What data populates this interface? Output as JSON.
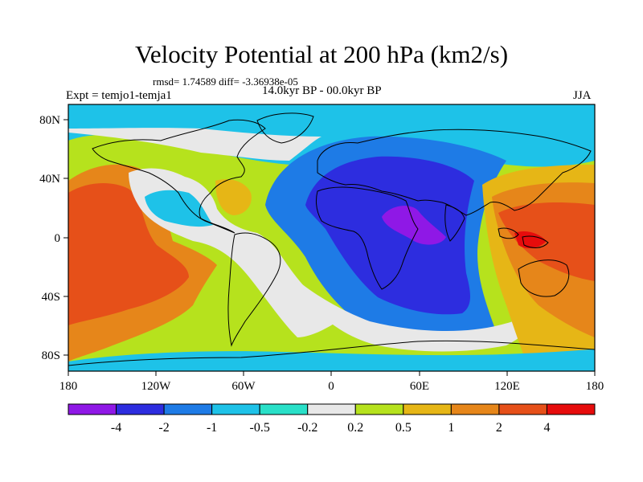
{
  "title": "Velocity Potential at 200 hPa (km2/s)",
  "stats": "rmsd= 1.74589 diff= -3.36938e-05",
  "left_label": "Expt = temjo1-temja1",
  "center_label": "14.0kyr BP - 00.0kyr BP",
  "right_label": "JJA",
  "axes": {
    "x_ticks": [
      "180",
      "120W",
      "60W",
      "0",
      "60E",
      "120E",
      "180"
    ],
    "y_ticks": [
      "80N",
      "40N",
      "0",
      "40S",
      "80S"
    ]
  },
  "colorbar": {
    "labels": [
      "-4",
      "-2",
      "-1",
      "-0.5",
      "-0.2",
      "0.2",
      "0.5",
      "1",
      "2",
      "4"
    ],
    "colors": [
      "#8f18e6",
      "#2d2ddf",
      "#1e7be6",
      "#1ec2e8",
      "#29e0c8",
      "#e8e8e8",
      "#b6e21d",
      "#e6b616",
      "#e6861a",
      "#e65019",
      "#e60c0c"
    ]
  }
}
